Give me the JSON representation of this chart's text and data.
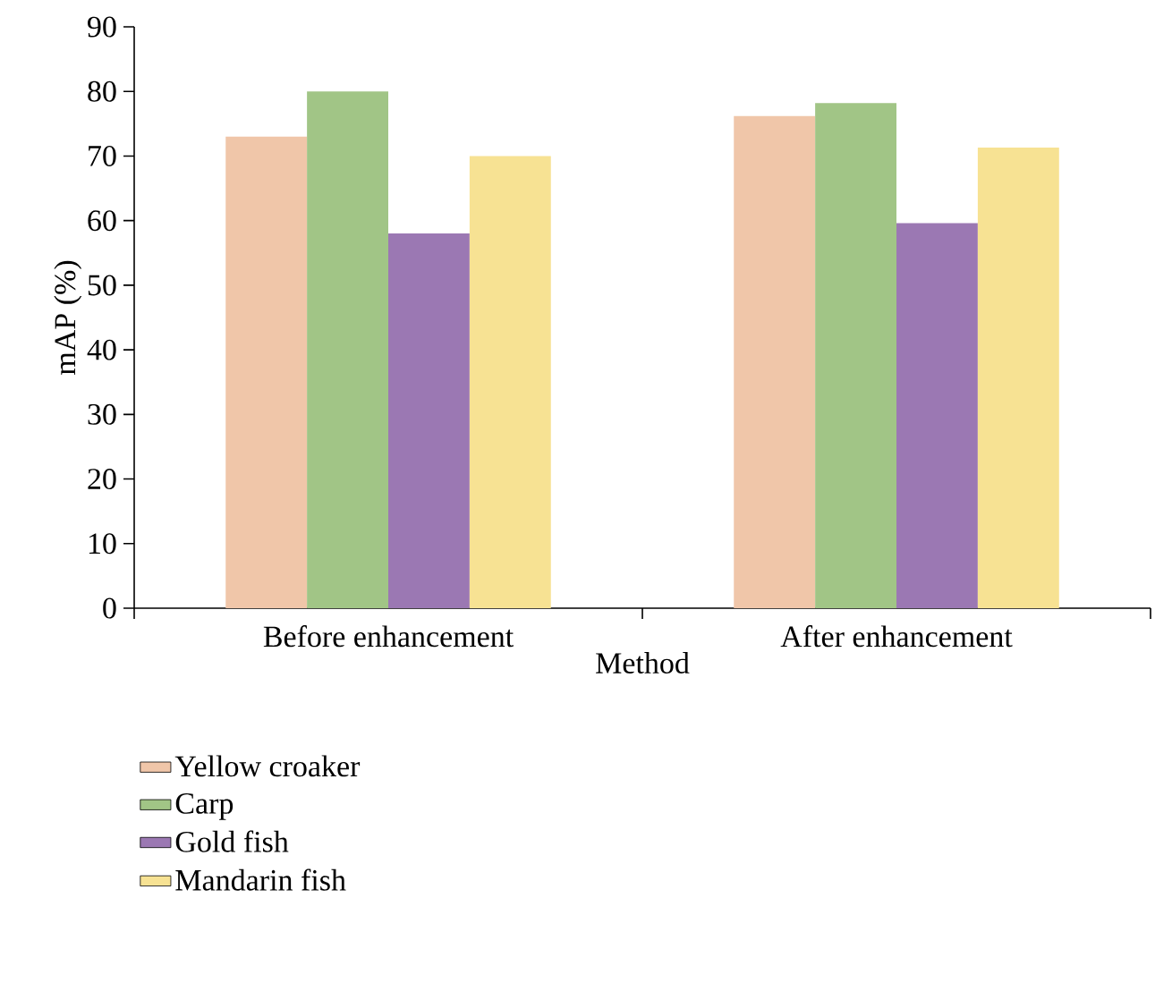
{
  "chart_data": {
    "type": "bar",
    "xlabel": "Method",
    "ylabel": "mAP (%)",
    "categories": [
      "Before enhancement",
      "After enhancement"
    ],
    "series": [
      {
        "name": "Yellow croaker",
        "color": "#f0c6a9",
        "values": [
          73,
          76.2
        ]
      },
      {
        "name": "Carp",
        "color": "#a1c586",
        "values": [
          80,
          78.2
        ]
      },
      {
        "name": "Gold fish",
        "color": "#9b78b3",
        "values": [
          58,
          59.6
        ]
      },
      {
        "name": "Mandarin fish",
        "color": "#f7e293",
        "values": [
          70,
          71.3
        ]
      }
    ],
    "ylim": [
      0,
      90
    ],
    "yticks": [
      0,
      10,
      20,
      30,
      40,
      50,
      60,
      70,
      80,
      90
    ],
    "legend": "bottom"
  }
}
